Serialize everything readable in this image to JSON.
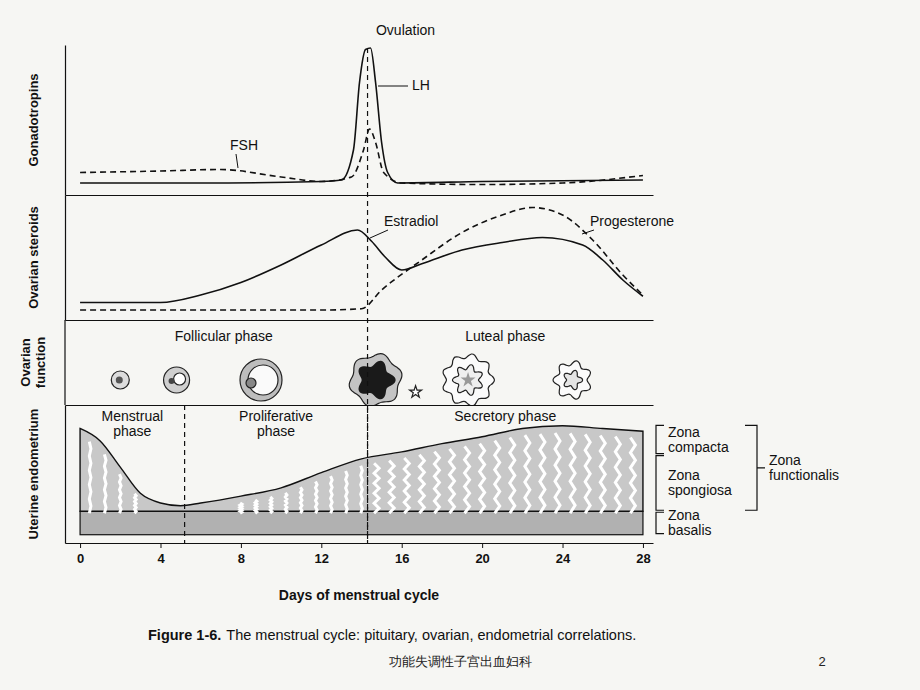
{
  "chart_data": [
    {
      "type": "line",
      "y_label": "Gonadotropins",
      "xlim": [
        -0.75,
        28.5
      ],
      "ylim": [
        0,
        100
      ],
      "tick_labels": false,
      "series": [
        {
          "name": "FSH",
          "line_style": "dashed",
          "color": "#111111",
          "x": [
            0,
            4,
            7,
            10,
            12,
            13.5,
            14.1,
            14.4,
            14.7,
            15.1,
            16,
            20,
            24,
            28
          ],
          "values": [
            15,
            16,
            17,
            12,
            9,
            12,
            30,
            44,
            35,
            15,
            8,
            7,
            8,
            13
          ]
        },
        {
          "name": "LH",
          "line_style": "solid",
          "color": "#111111",
          "x": [
            0,
            6,
            12,
            13,
            13.6,
            13.9,
            14.2,
            14.45,
            14.7,
            15,
            15.3,
            15.8,
            20,
            28
          ],
          "values": [
            8,
            8,
            9,
            10,
            30,
            75,
            97,
            98,
            75,
            35,
            15,
            8,
            9,
            10
          ]
        }
      ],
      "annotations": [
        {
          "text": "Ovulation",
          "x": 14.3
        }
      ]
    },
    {
      "type": "line",
      "y_label": "Ovarian steroids",
      "xlim": [
        -0.75,
        28.5
      ],
      "ylim": [
        0,
        100
      ],
      "tick_labels": false,
      "series": [
        {
          "name": "Estradiol",
          "line_style": "solid",
          "color": "#111111",
          "x": [
            0,
            4,
            6,
            8,
            10,
            12,
            13.8,
            14.5,
            15.2,
            16,
            17,
            19,
            21,
            23,
            25,
            26,
            27,
            28
          ],
          "values": [
            14,
            14,
            20,
            30,
            44,
            60,
            72,
            63,
            50,
            40,
            45,
            56,
            62,
            66,
            60,
            48,
            32,
            19
          ]
        },
        {
          "name": "Progesterone",
          "line_style": "dashed",
          "color": "#111111",
          "x": [
            0,
            12,
            14,
            15,
            17,
            19,
            21,
            22.5,
            24,
            25.5,
            27,
            28
          ],
          "values": [
            8,
            8,
            9,
            24,
            48,
            70,
            84,
            90,
            84,
            64,
            36,
            20
          ]
        }
      ]
    },
    {
      "type": "phases",
      "y_label": "Ovarian function",
      "xlim": [
        -0.75,
        28.5
      ],
      "tick_labels": false,
      "phases": [
        {
          "label": "Follicular phase",
          "start": 0,
          "end": 14.3
        },
        {
          "label": "Luteal phase",
          "start": 14.3,
          "end": 28
        }
      ],
      "x": [
        2,
        4.8,
        9,
        14.7,
        19.3,
        24.5
      ]
    },
    {
      "type": "area",
      "y_label": "Uterine endometrium",
      "x_label": "Days of menstrual cycle",
      "xlim": [
        -0.75,
        28.5
      ],
      "ylim": [
        0,
        100
      ],
      "xticks": [
        0,
        4,
        8,
        12,
        16,
        20,
        24,
        28
      ],
      "tick_labels": "x",
      "color": "#c8c8c8",
      "x": [
        0,
        1,
        2,
        3,
        4,
        5,
        6,
        8,
        10,
        12,
        14,
        16,
        18,
        20,
        22,
        24,
        26,
        28
      ],
      "values": [
        83,
        74,
        55,
        36,
        29,
        27,
        29,
        34,
        40,
        51,
        61,
        66,
        72,
        77,
        83,
        85,
        83,
        81
      ],
      "phases": [
        {
          "label": "Menstrual phase",
          "start": 0,
          "end": 5.2
        },
        {
          "label": "Proliferative phase",
          "start": 5.2,
          "end": 14.3
        },
        {
          "label": "Secretory phase",
          "start": 14.3,
          "end": 28
        }
      ],
      "zones": [
        {
          "label": "Zona compacta",
          "range": [
            64,
            86
          ]
        },
        {
          "label": "Zona spongiosa",
          "range": [
            23,
            64
          ]
        },
        {
          "label": "Zona basalis",
          "range": [
            6,
            23
          ]
        }
      ],
      "zone_group": {
        "label": "Zona functionalis",
        "range": [
          23,
          86
        ]
      }
    }
  ],
  "caption": {
    "label": "Figure 1-6.",
    "text": "The menstrual cycle: pituitary, ovarian, endometrial correlations."
  },
  "footer": "功能失调性子宫出血妇科",
  "page": 2
}
